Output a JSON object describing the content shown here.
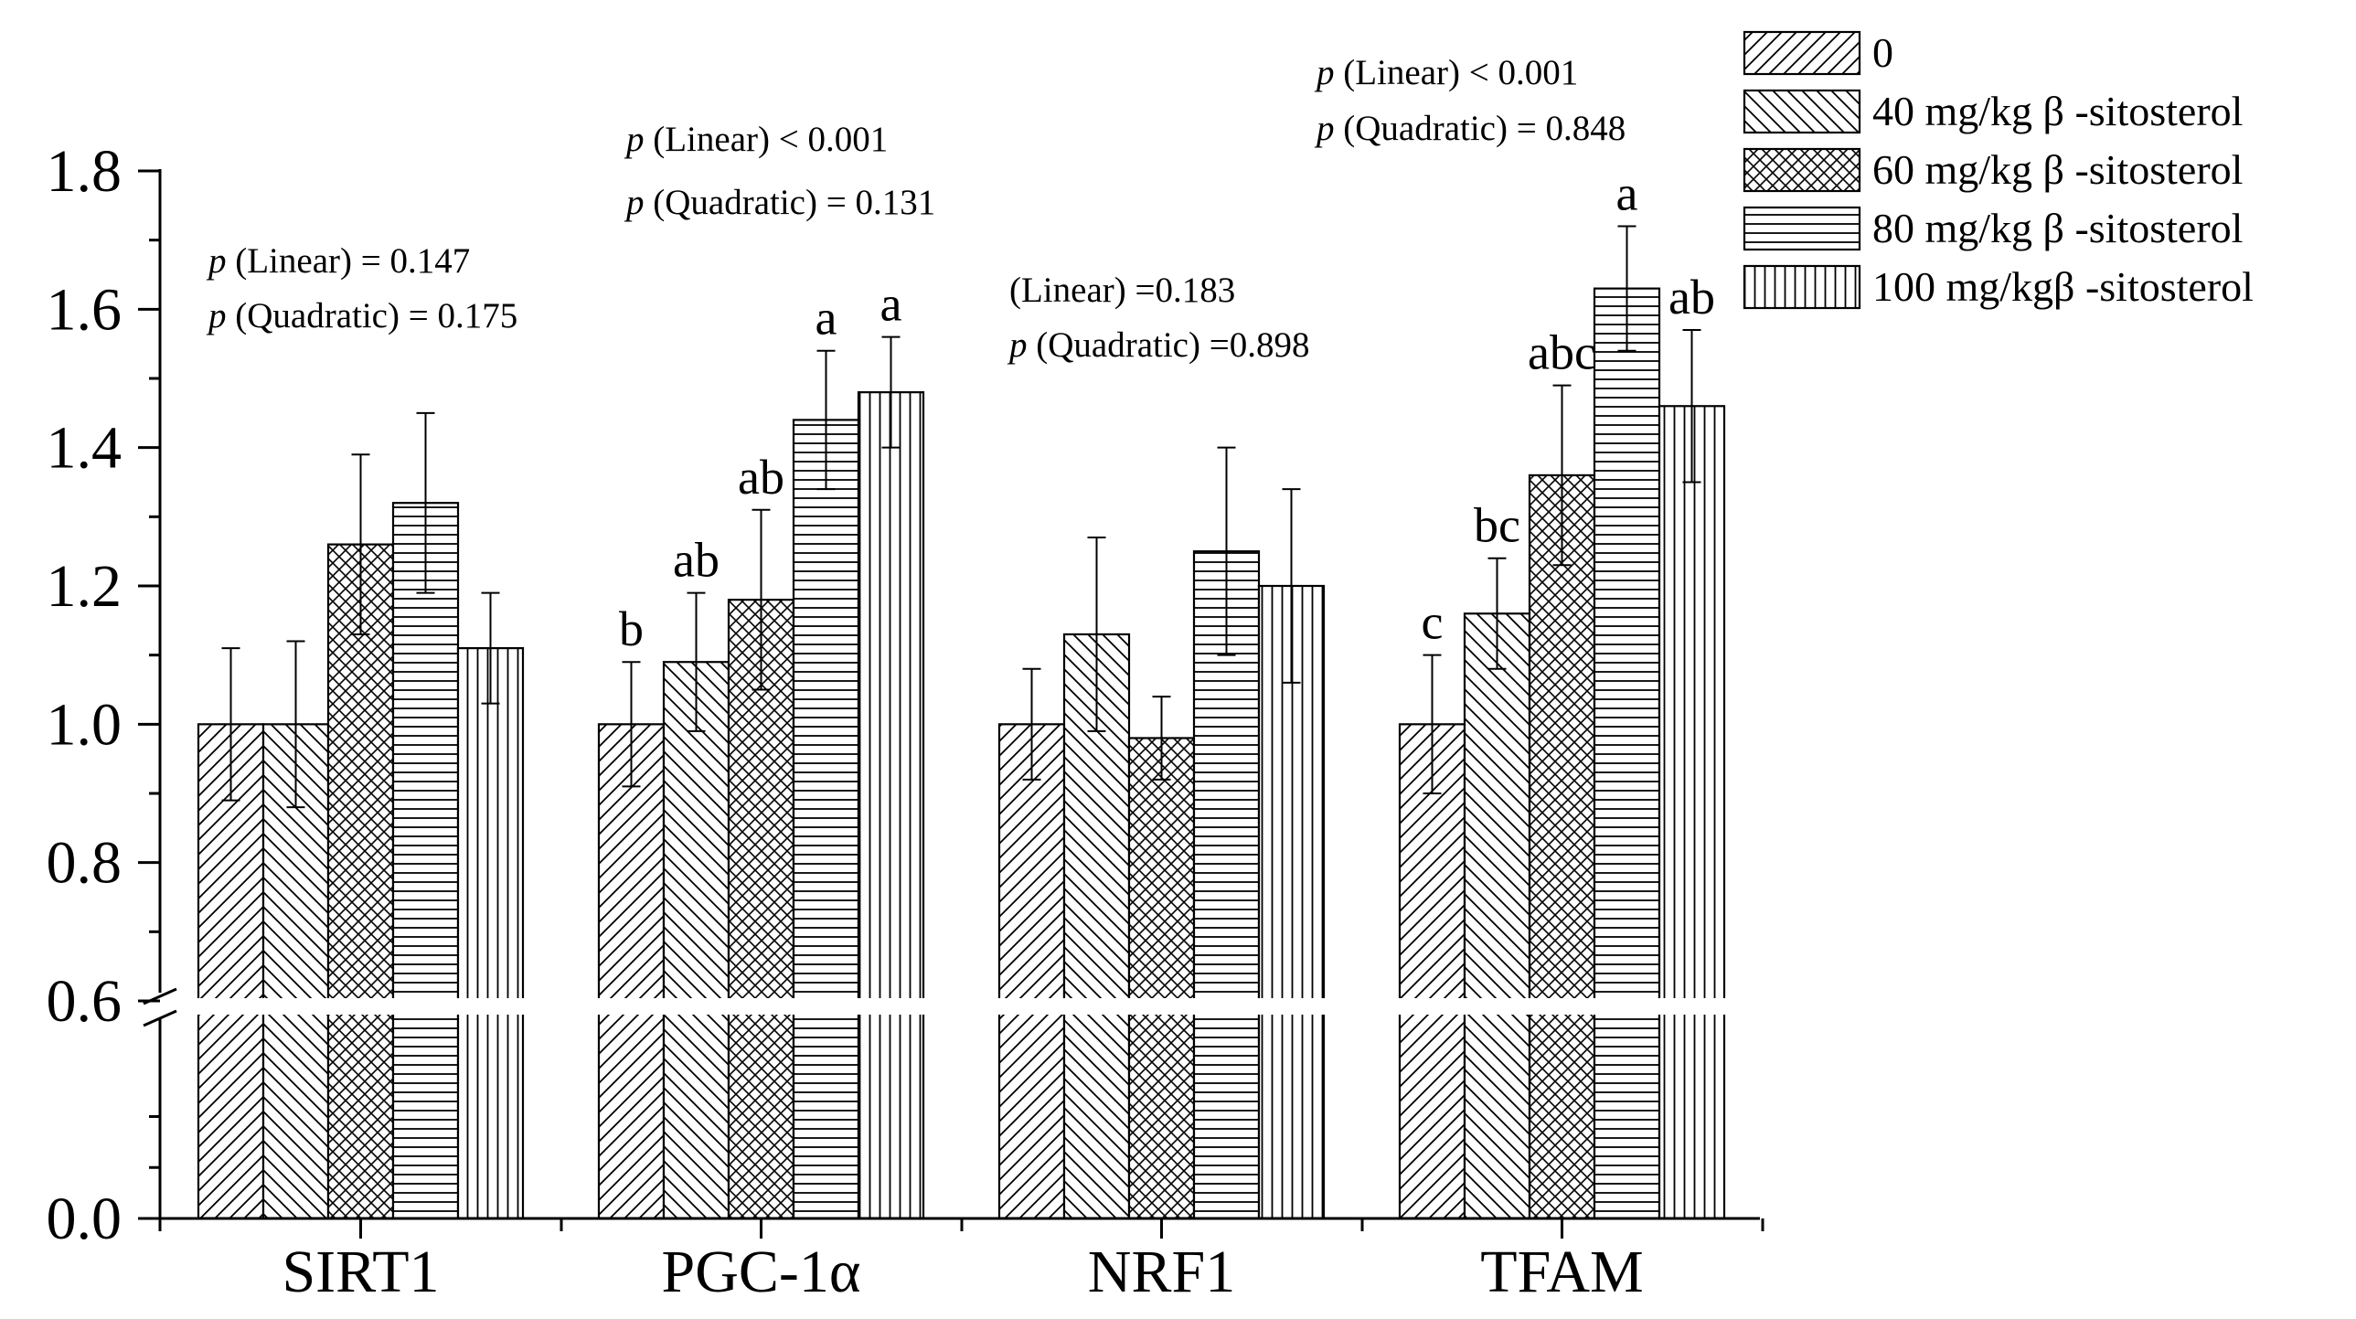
{
  "chart_data": {
    "type": "bar",
    "title": "",
    "xlabel": "",
    "ylabel": "",
    "ylim": [
      0,
      1.8
    ],
    "axis_break": [
      0.0,
      0.6
    ],
    "y_ticks": [
      "0.0",
      "0.6",
      "0.8",
      "1.0",
      "1.2",
      "1.4",
      "1.6",
      "1.8"
    ],
    "categories": [
      "SIRT1",
      "PGC-1α",
      "NRF1",
      "TFAM"
    ],
    "series": [
      {
        "name": "0",
        "pattern": "diag-left",
        "values": [
          1.0,
          1.0,
          1.0,
          1.0
        ],
        "errors": [
          0.11,
          0.09,
          0.08,
          0.1
        ],
        "labels": [
          "",
          "b",
          "",
          "c"
        ]
      },
      {
        "name": "40 mg/kg β -sitosterol",
        "pattern": "diag-right",
        "values": [
          1.0,
          1.09,
          1.13,
          1.16
        ],
        "errors": [
          0.12,
          0.1,
          0.14,
          0.08
        ],
        "labels": [
          "",
          "ab",
          "",
          "bc"
        ]
      },
      {
        "name": "60 mg/kg β -sitosterol",
        "pattern": "crosshatch",
        "values": [
          1.26,
          1.18,
          0.98,
          1.36
        ],
        "errors": [
          0.13,
          0.13,
          0.06,
          0.13
        ],
        "labels": [
          "",
          "ab",
          "",
          "abc"
        ]
      },
      {
        "name": "80 mg/kg β -sitosterol",
        "pattern": "horizontal",
        "values": [
          1.32,
          1.44,
          1.25,
          1.63
        ],
        "errors": [
          0.13,
          0.1,
          0.15,
          0.09
        ],
        "labels": [
          "",
          "a",
          "",
          "a"
        ]
      },
      {
        "name": "100 mg/kgβ -sitosterol",
        "pattern": "vertical",
        "values": [
          1.11,
          1.48,
          1.2,
          1.46
        ],
        "errors": [
          0.08,
          0.08,
          0.14,
          0.11
        ],
        "labels": [
          "",
          "a",
          "",
          "ab"
        ]
      }
    ],
    "annotations": [
      {
        "category": "SIRT1",
        "lines": [
          {
            "p": "p",
            "text": " (Linear) = 0.147"
          },
          {
            "p": "p",
            "text": " (Quadratic) = 0.175"
          }
        ]
      },
      {
        "category": "PGC-1α",
        "lines": [
          {
            "p": "p",
            "text": " (Linear) < 0.001"
          },
          {
            "p": "p",
            "text": "  (Quadratic) = 0.131"
          }
        ]
      },
      {
        "category": "NRF1",
        "lines": [
          {
            "p": "",
            "text": "(Linear) =0.183"
          },
          {
            "p": "p",
            "text": " (Quadratic) =0.898"
          }
        ]
      },
      {
        "category": "TFAM",
        "lines": [
          {
            "p": "p",
            "text": " (Linear) < 0.001"
          },
          {
            "p": "p",
            "text": " (Quadratic) = 0.848"
          }
        ]
      }
    ],
    "legend_position": "top-right",
    "grid": false
  }
}
